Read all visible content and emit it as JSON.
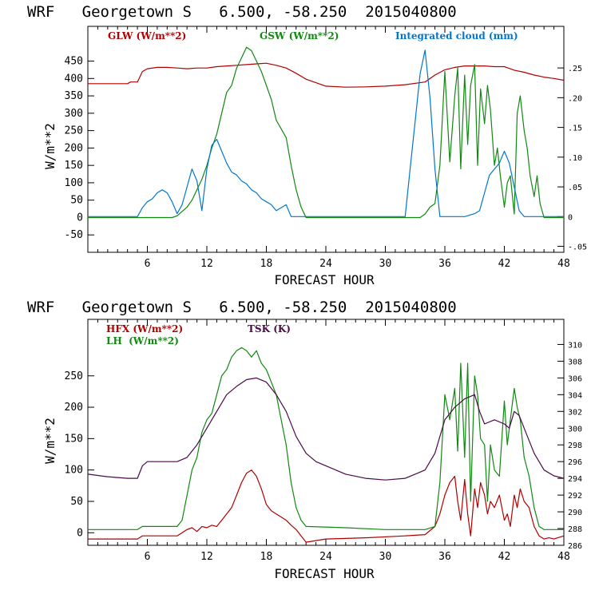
{
  "chart_data": [
    {
      "type": "line",
      "title": "WRF   Georgetown S   6.500, -58.250  2015040800",
      "xlabel": "FORECAST HOUR",
      "ylabel": "W/m**2",
      "xlim": [
        0,
        48
      ],
      "ylim": [
        -100,
        550
      ],
      "y2lim": [
        -0.06,
        0.32
      ],
      "x_ticks": [
        "6",
        "12",
        "18",
        "24",
        "30",
        "36",
        "42",
        "48"
      ],
      "y_ticks": [
        "-50",
        "0",
        "50",
        "100",
        "150",
        "200",
        "250",
        "300",
        "350",
        "400",
        "450"
      ],
      "y2_ticks": [
        "-.05",
        "0",
        ".05",
        ".10",
        ".15",
        ".20",
        ".25"
      ],
      "series": [
        {
          "name": "GLW (W/m**2)",
          "color": "#b00000",
          "axis": "left",
          "x": [
            0,
            4,
            4.3,
            5,
            5.5,
            6,
            7,
            8,
            9,
            10,
            11,
            12,
            13,
            14,
            15,
            16,
            17,
            18,
            19,
            20,
            21,
            22,
            24,
            26,
            28,
            30,
            32,
            34,
            35,
            36,
            37,
            38,
            39,
            40,
            41,
            42,
            43,
            44,
            45,
            46,
            47,
            48
          ],
          "y": [
            385,
            385,
            390,
            390,
            420,
            428,
            432,
            432,
            430,
            428,
            430,
            430,
            434,
            436,
            438,
            440,
            442,
            444,
            438,
            430,
            415,
            398,
            378,
            375,
            376,
            378,
            382,
            390,
            410,
            425,
            432,
            436,
            436,
            436,
            434,
            434,
            424,
            418,
            410,
            404,
            400,
            395
          ]
        },
        {
          "name": "GSW (W/m**2)",
          "color": "#118811",
          "axis": "left",
          "x": [
            0,
            8.5,
            9,
            10,
            10.5,
            11,
            11.5,
            12,
            12.5,
            13,
            13.5,
            14,
            14.5,
            15,
            15.5,
            16,
            16.5,
            17,
            17.5,
            18,
            18.5,
            19,
            20,
            20.5,
            21,
            21.5,
            22,
            22.5,
            33.5,
            34,
            34.5,
            35,
            35.5,
            36,
            36.5,
            37,
            37.3,
            37.6,
            38,
            38.3,
            38.6,
            39,
            39.3,
            39.6,
            40,
            40.3,
            40.6,
            41,
            41.3,
            41.6,
            42,
            42.3,
            42.6,
            43,
            43.3,
            43.6,
            44,
            44.3,
            44.6,
            45,
            45.3,
            45.6,
            46,
            48
          ],
          "y": [
            0,
            0,
            5,
            30,
            50,
            80,
            110,
            150,
            200,
            240,
            300,
            360,
            380,
            430,
            460,
            490,
            480,
            450,
            420,
            380,
            340,
            280,
            230,
            150,
            80,
            30,
            0,
            0,
            0,
            10,
            30,
            40,
            150,
            420,
            160,
            350,
            430,
            140,
            410,
            210,
            380,
            440,
            150,
            370,
            270,
            380,
            310,
            150,
            200,
            120,
            30,
            100,
            120,
            10,
            300,
            350,
            250,
            200,
            120,
            60,
            120,
            40,
            0,
            0
          ]
        },
        {
          "name": "Integrated cloud (mm)",
          "color": "#0077cc",
          "axis": "right",
          "x": [
            0,
            5,
            5.5,
            6,
            6.5,
            7,
            7.5,
            8,
            8.5,
            9,
            9.5,
            10,
            10.5,
            11,
            11.5,
            12,
            12.5,
            13,
            13.5,
            14,
            14.5,
            15,
            15.5,
            16,
            16.5,
            17,
            17.5,
            18,
            18.5,
            19,
            19.5,
            20,
            20.5,
            32,
            32.5,
            33,
            33.5,
            34,
            34.5,
            35,
            35.5,
            36,
            37,
            38,
            39,
            39.5,
            40,
            40.5,
            41,
            41.5,
            42,
            42.5,
            43,
            43.5,
            44,
            48
          ],
          "y": [
            0,
            0,
            0.015,
            0.025,
            0.03,
            0.04,
            0.045,
            0.04,
            0.025,
            0.005,
            0.02,
            0.05,
            0.08,
            0.06,
            0.01,
            0.08,
            0.12,
            0.13,
            0.11,
            0.09,
            0.075,
            0.07,
            0.06,
            0.055,
            0.045,
            0.04,
            0.03,
            0.025,
            0.02,
            0.01,
            0.015,
            0.02,
            0,
            0,
            0.08,
            0.16,
            0.24,
            0.28,
            0.2,
            0.08,
            0,
            0,
            0,
            0,
            0.005,
            0.01,
            0.04,
            0.07,
            0.08,
            0.09,
            0.11,
            0.09,
            0.05,
            0.01,
            0,
            0
          ]
        }
      ]
    },
    {
      "type": "line",
      "title": "WRF   Georgetown S   6.500, -58.250  2015040800",
      "xlabel": "FORECAST HOUR",
      "ylabel": "W/m**2",
      "xlim": [
        0,
        48
      ],
      "ylim": [
        -20,
        340
      ],
      "y2lim": [
        286,
        313
      ],
      "x_ticks": [
        "6",
        "12",
        "18",
        "24",
        "30",
        "36",
        "42",
        "48"
      ],
      "y_ticks": [
        "0",
        "50",
        "100",
        "150",
        "200",
        "250"
      ],
      "y2_ticks": [
        "286",
        "288",
        "290",
        "292",
        "294",
        "296",
        "298",
        "300",
        "302",
        "304",
        "306",
        "308",
        "310"
      ],
      "series": [
        {
          "name": "HFX (W/m**2)",
          "color": "#b00000",
          "axis": "left",
          "x": [
            0,
            5,
            5.5,
            9,
            10,
            10.5,
            11,
            11.5,
            12,
            12.5,
            13,
            13.5,
            14,
            14.5,
            15,
            15.5,
            16,
            16.5,
            17,
            17.5,
            18,
            18.5,
            19,
            19.5,
            20,
            20.5,
            21,
            21.5,
            22,
            24,
            28,
            32,
            34,
            35,
            35.5,
            36,
            36.5,
            37,
            37.3,
            37.6,
            38,
            38.3,
            38.6,
            39,
            39.3,
            39.6,
            40,
            40.3,
            40.6,
            41,
            41.5,
            42,
            42.3,
            42.6,
            43,
            43.3,
            43.6,
            44,
            44.5,
            45,
            45.5,
            46,
            46.5,
            47,
            48
          ],
          "y": [
            -10,
            -10,
            -5,
            -5,
            5,
            8,
            2,
            10,
            8,
            12,
            10,
            20,
            30,
            40,
            60,
            80,
            95,
            100,
            90,
            70,
            45,
            35,
            30,
            25,
            20,
            12,
            5,
            -5,
            -15,
            -10,
            -8,
            -5,
            -3,
            10,
            30,
            60,
            80,
            90,
            50,
            20,
            85,
            30,
            -5,
            70,
            40,
            80,
            60,
            30,
            50,
            40,
            60,
            20,
            30,
            10,
            60,
            40,
            70,
            50,
            40,
            10,
            -5,
            -10,
            -8,
            -10,
            -5
          ]
        },
        {
          "name": "LH  (W/m**2)",
          "color": "#118811",
          "axis": "left",
          "x": [
            0,
            5,
            5.5,
            9,
            9.5,
            10,
            10.5,
            11,
            11.5,
            12,
            12.5,
            13,
            13.5,
            14,
            14.5,
            15,
            15.5,
            16,
            16.5,
            17,
            17.5,
            18,
            18.5,
            19,
            19.5,
            20,
            20.5,
            21,
            21.5,
            22,
            26,
            30,
            34,
            35,
            35.5,
            36,
            36.5,
            37,
            37.3,
            37.6,
            38,
            38.3,
            38.6,
            39,
            39.3,
            39.6,
            40,
            40.3,
            40.6,
            41,
            41.5,
            42,
            42.3,
            42.6,
            43,
            43.3,
            43.6,
            44,
            44.5,
            45,
            45.5,
            46,
            48
          ],
          "y": [
            5,
            5,
            10,
            10,
            20,
            60,
            100,
            120,
            160,
            180,
            190,
            220,
            250,
            260,
            280,
            290,
            295,
            290,
            280,
            290,
            270,
            260,
            240,
            220,
            180,
            140,
            80,
            40,
            20,
            10,
            8,
            5,
            5,
            10,
            80,
            220,
            180,
            230,
            130,
            270,
            120,
            270,
            50,
            250,
            220,
            150,
            140,
            50,
            140,
            100,
            90,
            210,
            140,
            180,
            230,
            200,
            180,
            120,
            90,
            40,
            10,
            5,
            5
          ]
        },
        {
          "name": "TSK (K)",
          "color": "#4a0a4a",
          "axis": "right",
          "x": [
            0,
            2,
            4,
            5,
            5.5,
            6,
            8,
            9,
            10,
            11,
            12,
            13,
            14,
            15,
            16,
            17,
            18,
            19,
            20,
            21,
            22,
            23,
            24,
            26,
            28,
            30,
            32,
            33,
            34,
            34.5,
            35,
            35.5,
            36,
            37,
            38,
            39,
            39.5,
            40,
            41,
            42,
            42.5,
            43,
            43.5,
            44,
            45,
            46,
            47,
            48
          ],
          "y": [
            294.5,
            294.2,
            294,
            294,
            295.5,
            296,
            296,
            296,
            296.5,
            298,
            300,
            302,
            304,
            305,
            305.8,
            306,
            305.5,
            304,
            302,
            299,
            297,
            296,
            295.5,
            294.5,
            294,
            293.8,
            294,
            294.5,
            295,
            296,
            297,
            299,
            301,
            302.5,
            303.5,
            304,
            302,
            300.5,
            301,
            300.5,
            300,
            302,
            301.5,
            300,
            297,
            295,
            294.3,
            294
          ]
        }
      ]
    }
  ]
}
